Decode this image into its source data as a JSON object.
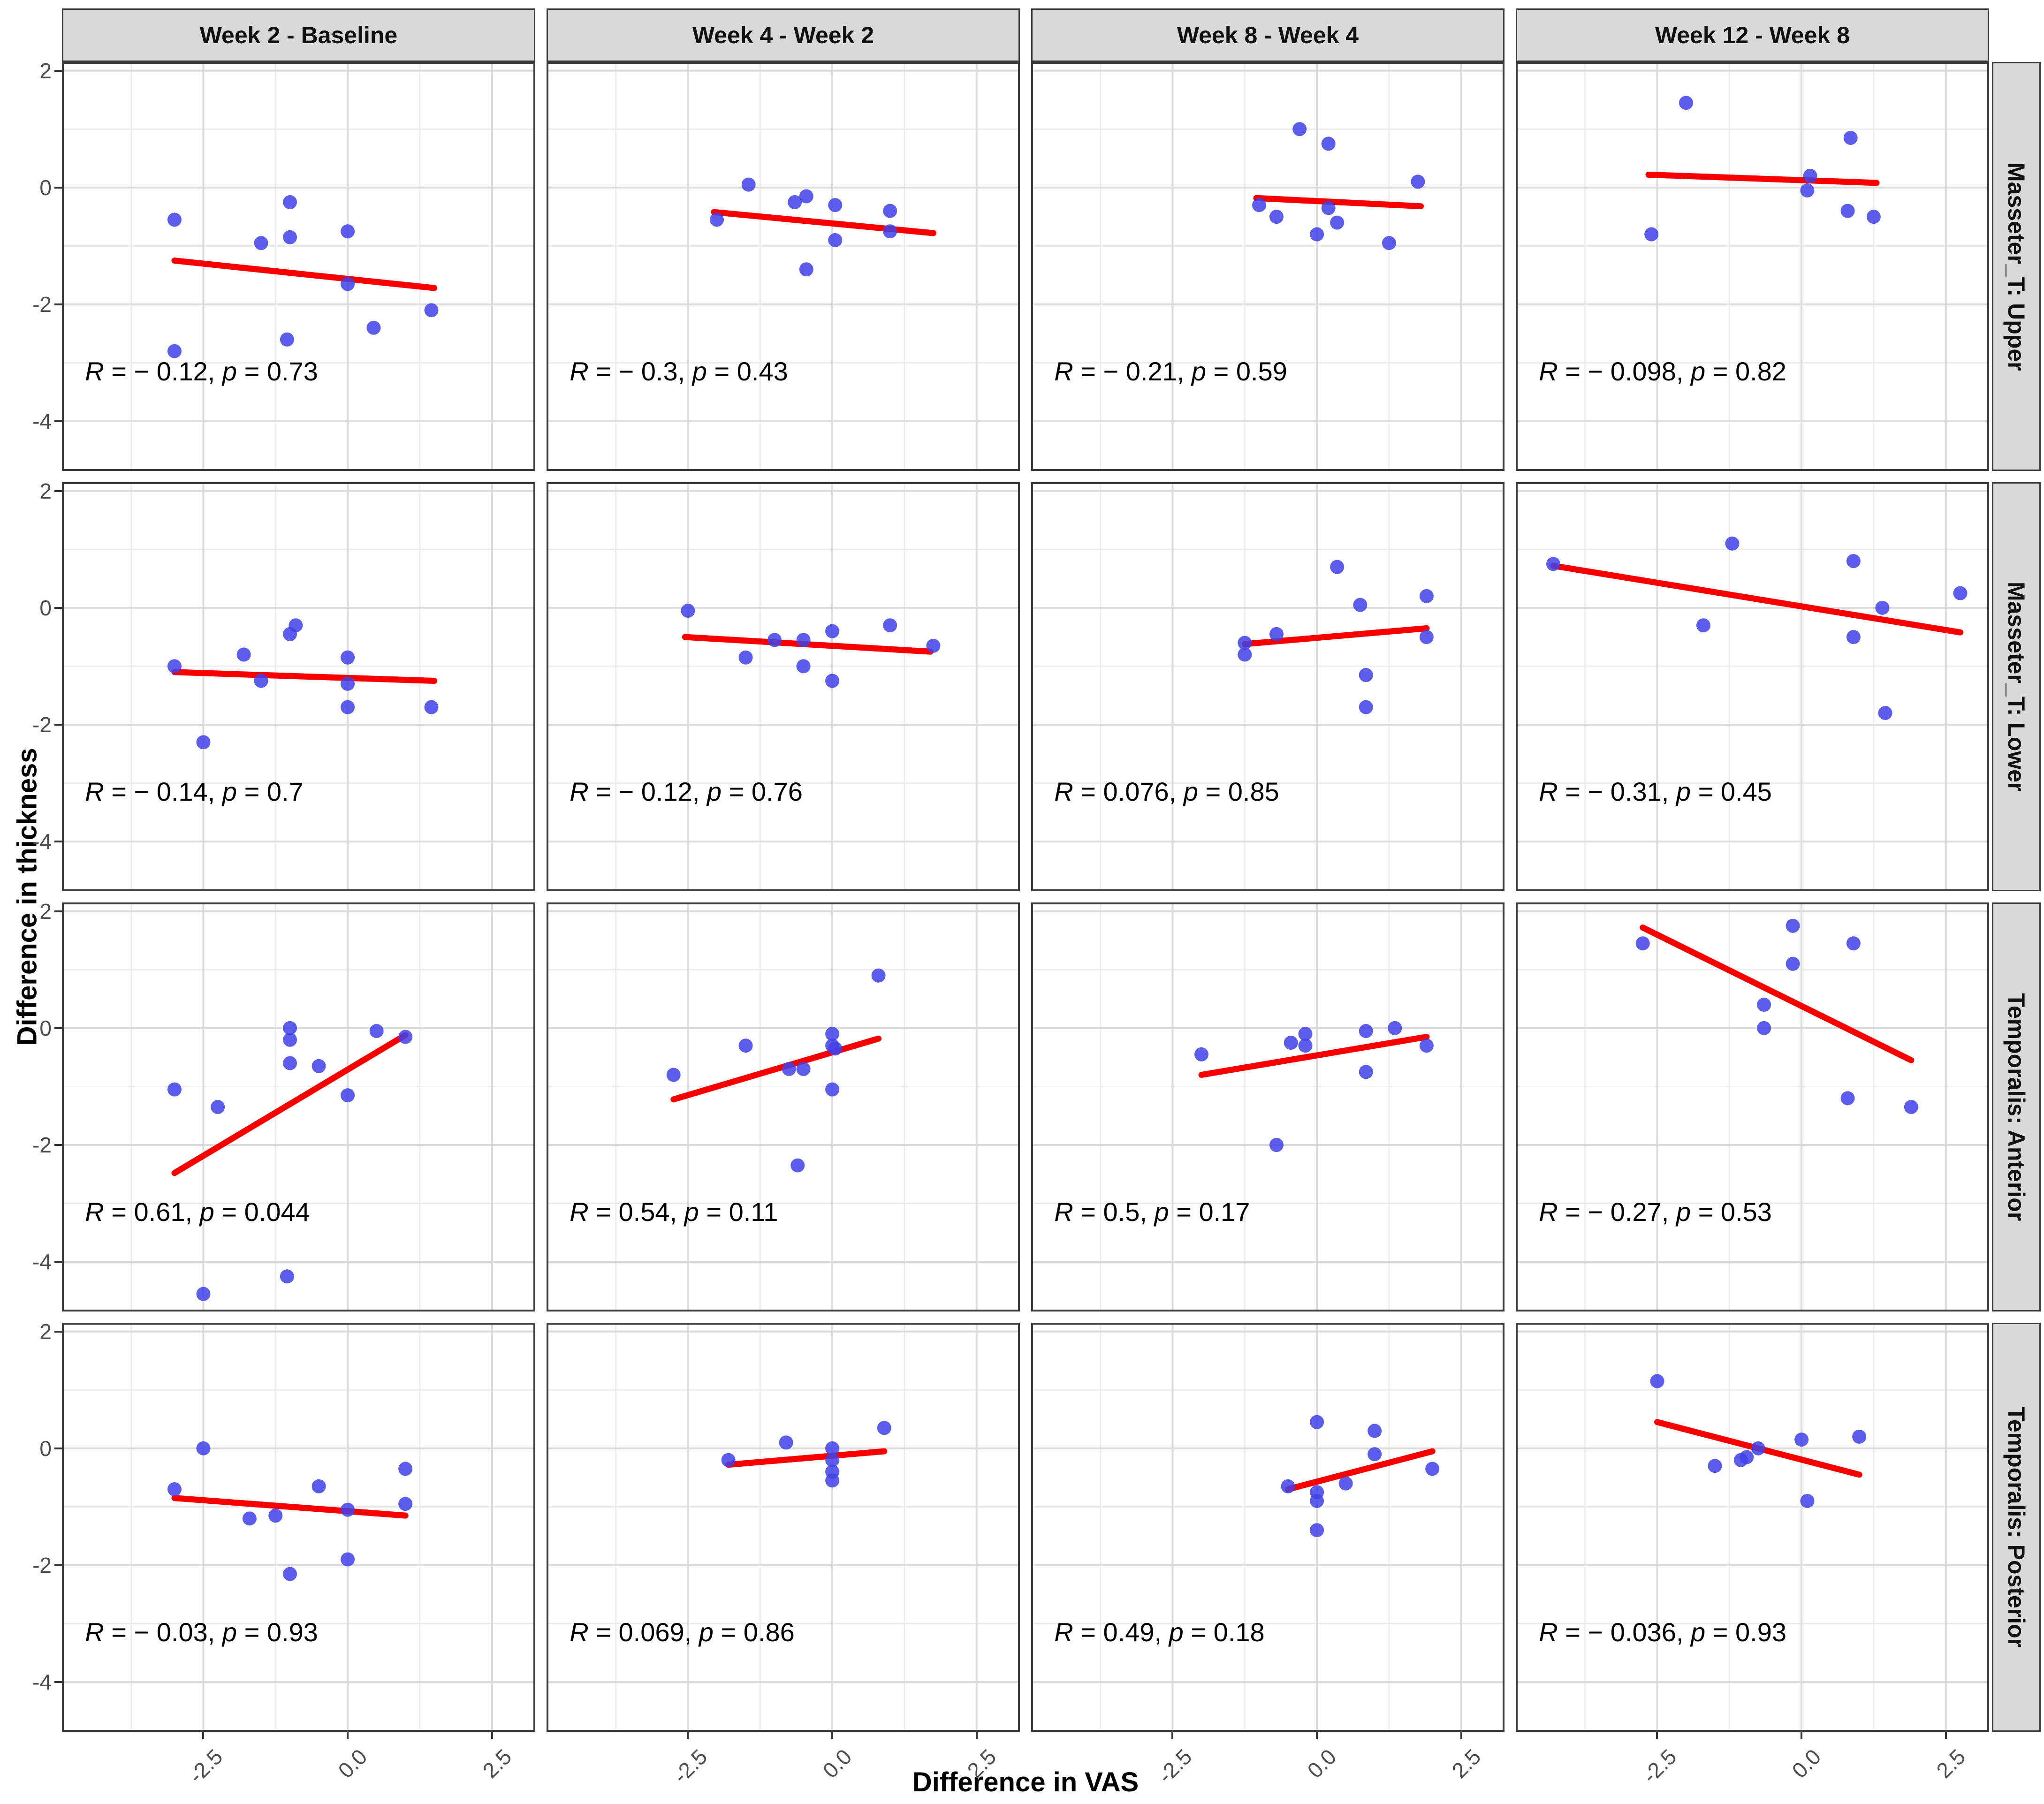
{
  "chart_data": {
    "type": "scatter",
    "title": "",
    "xlabel": "Difference in VAS",
    "ylabel": "Difference in thickness",
    "legend": "none",
    "grid": true,
    "facet_columns": [
      "Week 2 - Baseline",
      "Week 4 - Week 2",
      "Week 8 - Week 4",
      "Week 12 - Week 8"
    ],
    "facet_rows": [
      "Masseter_T: Upper",
      "Masseter_T: Lower",
      "Temporalis: Anterior",
      "Temporalis: Posterior"
    ],
    "x_ticks": [
      -2.5,
      0.0,
      2.5
    ],
    "x_tick_labels": [
      "-2.5",
      "0.0",
      "2.5"
    ],
    "x_minor_ticks": [
      -3.75,
      -1.25,
      1.25
    ],
    "y_ticks": [
      2,
      0,
      -2,
      -4
    ],
    "y_tick_labels": [
      "2",
      "0",
      "-2",
      "-4"
    ],
    "y_minor_ticks": [
      1,
      -1,
      -3
    ],
    "x_range": [
      -4.95,
      3.25
    ],
    "y_range": [
      -4.85,
      2.15
    ],
    "point_color": "#4141E8",
    "trend_color": "#F90000",
    "strip_fill": "#D9D9D9",
    "tick_text_color": "#4D4D4D",
    "panels": [
      {
        "row": "Masseter_T: Upper",
        "col": "Week 2 - Baseline",
        "stat_label": "R = − 0.12, p = 0.73",
        "points": [
          [
            -3.0,
            -0.55
          ],
          [
            -1.5,
            -0.95
          ],
          [
            -1.0,
            -0.25
          ],
          [
            -1.0,
            -0.85
          ],
          [
            0.0,
            -0.75
          ],
          [
            0.0,
            -1.65
          ],
          [
            0.45,
            -2.4
          ],
          [
            1.45,
            -2.1
          ],
          [
            -1.05,
            -2.6
          ],
          [
            -3.0,
            -2.8
          ]
        ],
        "trend": [
          [
            -3.0,
            -1.25
          ],
          [
            1.5,
            -1.72
          ]
        ]
      },
      {
        "row": "Masseter_T: Upper",
        "col": "Week 4 - Week 2",
        "stat_label": "R = − 0.3, p = 0.43",
        "points": [
          [
            -2.0,
            -0.55
          ],
          [
            -1.45,
            0.05
          ],
          [
            -0.65,
            -0.25
          ],
          [
            -0.45,
            -0.15
          ],
          [
            0.05,
            -0.3
          ],
          [
            1.0,
            -0.4
          ],
          [
            1.0,
            -0.75
          ],
          [
            0.05,
            -0.9
          ],
          [
            -0.45,
            -1.4
          ]
        ],
        "trend": [
          [
            -2.05,
            -0.42
          ],
          [
            1.75,
            -0.78
          ]
        ]
      },
      {
        "row": "Masseter_T: Upper",
        "col": "Week 8 - Week 4",
        "stat_label": "R = − 0.21, p = 0.59",
        "points": [
          [
            -0.3,
            1.0
          ],
          [
            0.2,
            0.75
          ],
          [
            1.75,
            0.1
          ],
          [
            -1.0,
            -0.3
          ],
          [
            -0.7,
            -0.5
          ],
          [
            0.2,
            -0.35
          ],
          [
            0.35,
            -0.6
          ],
          [
            0.0,
            -0.8
          ],
          [
            1.25,
            -0.95
          ]
        ],
        "trend": [
          [
            -1.05,
            -0.18
          ],
          [
            1.8,
            -0.32
          ]
        ]
      },
      {
        "row": "Masseter_T: Upper",
        "col": "Week 12 - Week 8",
        "stat_label": "R = − 0.098, p = 0.82",
        "points": [
          [
            -2.0,
            1.45
          ],
          [
            0.85,
            0.85
          ],
          [
            0.15,
            0.2
          ],
          [
            0.1,
            -0.05
          ],
          [
            0.8,
            -0.4
          ],
          [
            1.25,
            -0.5
          ],
          [
            -2.6,
            -0.8
          ]
        ],
        "trend": [
          [
            -2.65,
            0.22
          ],
          [
            1.3,
            0.08
          ]
        ]
      },
      {
        "row": "Masseter_T: Lower",
        "col": "Week 2 - Baseline",
        "stat_label": "R = − 0.14, p = 0.7",
        "points": [
          [
            -3.0,
            -1.0
          ],
          [
            -2.5,
            -2.3
          ],
          [
            -1.8,
            -0.8
          ],
          [
            -1.5,
            -1.25
          ],
          [
            -1.0,
            -0.45
          ],
          [
            -0.9,
            -0.3
          ],
          [
            0.0,
            -0.85
          ],
          [
            0.0,
            -1.3
          ],
          [
            0.0,
            -1.7
          ],
          [
            1.45,
            -1.7
          ]
        ],
        "trend": [
          [
            -3.0,
            -1.1
          ],
          [
            1.5,
            -1.25
          ]
        ]
      },
      {
        "row": "Masseter_T: Lower",
        "col": "Week 4 - Week 2",
        "stat_label": "R = − 0.12, p = 0.76",
        "points": [
          [
            -2.5,
            -0.05
          ],
          [
            -1.5,
            -0.85
          ],
          [
            -1.0,
            -0.55
          ],
          [
            -0.5,
            -0.55
          ],
          [
            -0.5,
            -1.0
          ],
          [
            0.0,
            -0.4
          ],
          [
            0.0,
            -1.25
          ],
          [
            1.0,
            -0.3
          ],
          [
            1.75,
            -0.65
          ]
        ],
        "trend": [
          [
            -2.55,
            -0.5
          ],
          [
            1.7,
            -0.75
          ]
        ]
      },
      {
        "row": "Masseter_T: Lower",
        "col": "Week 8 - Week 4",
        "stat_label": "R = 0.076, p = 0.85",
        "points": [
          [
            0.35,
            0.7
          ],
          [
            0.75,
            0.05
          ],
          [
            1.9,
            0.2
          ],
          [
            -0.7,
            -0.45
          ],
          [
            -1.25,
            -0.6
          ],
          [
            -1.25,
            -0.8
          ],
          [
            1.9,
            -0.5
          ],
          [
            0.85,
            -1.15
          ],
          [
            0.85,
            -1.7
          ]
        ],
        "trend": [
          [
            -1.25,
            -0.62
          ],
          [
            1.9,
            -0.35
          ]
        ]
      },
      {
        "row": "Masseter_T: Lower",
        "col": "Week 12 - Week 8",
        "stat_label": "R = − 0.31, p = 0.45",
        "points": [
          [
            -4.3,
            0.75
          ],
          [
            -1.2,
            1.1
          ],
          [
            0.9,
            0.8
          ],
          [
            2.75,
            0.25
          ],
          [
            1.4,
            0.0
          ],
          [
            -1.7,
            -0.3
          ],
          [
            0.9,
            -0.5
          ],
          [
            1.45,
            -1.8
          ]
        ],
        "trend": [
          [
            -4.3,
            0.72
          ],
          [
            2.75,
            -0.42
          ]
        ]
      },
      {
        "row": "Temporalis: Anterior",
        "col": "Week 2 - Baseline",
        "stat_label": "R = 0.61, p = 0.044",
        "points": [
          [
            -3.0,
            -1.05
          ],
          [
            -2.25,
            -1.35
          ],
          [
            -1.0,
            0.0
          ],
          [
            -1.0,
            -0.2
          ],
          [
            -1.0,
            -0.6
          ],
          [
            -0.5,
            -0.65
          ],
          [
            0.0,
            -1.15
          ],
          [
            0.5,
            -0.05
          ],
          [
            1.0,
            -0.15
          ],
          [
            -1.05,
            -4.25
          ],
          [
            -2.5,
            -4.55
          ]
        ],
        "trend": [
          [
            -3.0,
            -2.48
          ],
          [
            1.0,
            -0.12
          ]
        ]
      },
      {
        "row": "Temporalis: Anterior",
        "col": "Week 4 - Week 2",
        "stat_label": "R = 0.54, p = 0.11",
        "points": [
          [
            -2.75,
            -0.8
          ],
          [
            -1.5,
            -0.3
          ],
          [
            -0.75,
            -0.7
          ],
          [
            -0.5,
            -0.7
          ],
          [
            0.0,
            -0.1
          ],
          [
            0.0,
            -0.3
          ],
          [
            0.05,
            -0.35
          ],
          [
            0.0,
            -1.05
          ],
          [
            0.8,
            0.9
          ],
          [
            -0.6,
            -2.35
          ]
        ],
        "trend": [
          [
            -2.75,
            -1.22
          ],
          [
            0.8,
            -0.18
          ]
        ]
      },
      {
        "row": "Temporalis: Anterior",
        "col": "Week 8 - Week 4",
        "stat_label": "R = 0.5, p = 0.17",
        "points": [
          [
            -2.0,
            -0.45
          ],
          [
            -0.45,
            -0.25
          ],
          [
            -0.2,
            -0.1
          ],
          [
            -0.2,
            -0.3
          ],
          [
            0.85,
            -0.05
          ],
          [
            1.35,
            0.0
          ],
          [
            0.85,
            -0.75
          ],
          [
            1.9,
            -0.3
          ],
          [
            -0.7,
            -2.0
          ]
        ],
        "trend": [
          [
            -2.0,
            -0.8
          ],
          [
            1.9,
            -0.15
          ]
        ]
      },
      {
        "row": "Temporalis: Anterior",
        "col": "Week 12 - Week 8",
        "stat_label": "R = − 0.27, p = 0.53",
        "points": [
          [
            -2.75,
            1.45
          ],
          [
            -0.15,
            1.75
          ],
          [
            0.9,
            1.45
          ],
          [
            -0.15,
            1.1
          ],
          [
            -0.65,
            0.4
          ],
          [
            -0.65,
            0.0
          ],
          [
            0.8,
            -1.2
          ],
          [
            1.9,
            -1.35
          ]
        ],
        "trend": [
          [
            -2.75,
            1.72
          ],
          [
            1.9,
            -0.55
          ]
        ]
      },
      {
        "row": "Temporalis: Posterior",
        "col": "Week 2 - Baseline",
        "stat_label": "R = − 0.03, p = 0.93",
        "points": [
          [
            -2.5,
            0.0
          ],
          [
            -3.0,
            -0.7
          ],
          [
            -0.5,
            -0.65
          ],
          [
            -1.7,
            -1.2
          ],
          [
            -1.25,
            -1.15
          ],
          [
            0.0,
            -1.05
          ],
          [
            1.0,
            -0.35
          ],
          [
            1.0,
            -0.95
          ],
          [
            0.0,
            -1.9
          ],
          [
            -1.0,
            -2.15
          ]
        ],
        "trend": [
          [
            -3.0,
            -0.85
          ],
          [
            1.0,
            -1.15
          ]
        ]
      },
      {
        "row": "Temporalis: Posterior",
        "col": "Week 4 - Week 2",
        "stat_label": "R = 0.069, p = 0.86",
        "points": [
          [
            -1.8,
            -0.2
          ],
          [
            -0.8,
            0.1
          ],
          [
            0.0,
            0.0
          ],
          [
            0.0,
            -0.2
          ],
          [
            0.0,
            -0.4
          ],
          [
            0.0,
            -0.55
          ],
          [
            0.9,
            0.35
          ]
        ],
        "trend": [
          [
            -1.8,
            -0.28
          ],
          [
            0.9,
            -0.05
          ]
        ]
      },
      {
        "row": "Temporalis: Posterior",
        "col": "Week 8 - Week 4",
        "stat_label": "R = 0.49, p = 0.18",
        "points": [
          [
            0.0,
            0.45
          ],
          [
            1.0,
            0.3
          ],
          [
            1.0,
            -0.1
          ],
          [
            2.0,
            -0.35
          ],
          [
            -0.5,
            -0.65
          ],
          [
            0.5,
            -0.6
          ],
          [
            0.0,
            -0.75
          ],
          [
            0.0,
            -0.9
          ],
          [
            0.0,
            -1.4
          ]
        ],
        "trend": [
          [
            -0.5,
            -0.7
          ],
          [
            2.0,
            -0.05
          ]
        ]
      },
      {
        "row": "Temporalis: Posterior",
        "col": "Week 12 - Week 8",
        "stat_label": "R = − 0.036, p = 0.93",
        "points": [
          [
            -2.5,
            1.15
          ],
          [
            -1.5,
            -0.3
          ],
          [
            -1.05,
            -0.2
          ],
          [
            -0.95,
            -0.15
          ],
          [
            -0.75,
            0.0
          ],
          [
            0.0,
            0.15
          ],
          [
            1.0,
            0.2
          ],
          [
            0.1,
            -0.9
          ]
        ],
        "trend": [
          [
            -2.5,
            0.45
          ],
          [
            1.0,
            -0.45
          ]
        ]
      }
    ]
  }
}
